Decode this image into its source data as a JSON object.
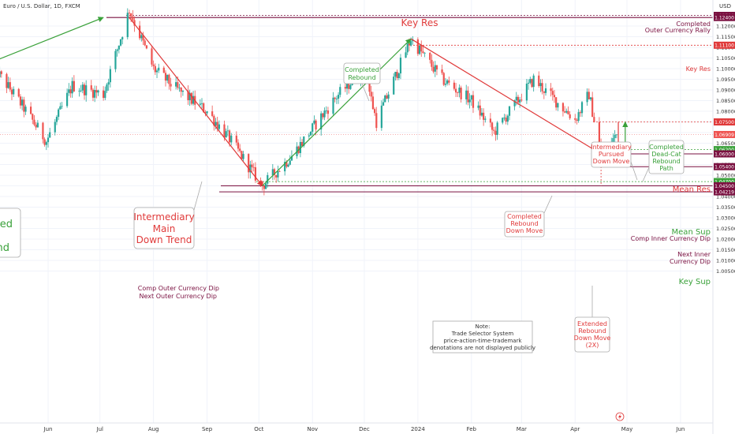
{
  "chart_title": "Euro / U.S. Dollar, 1D, FXCM",
  "currency_label": "USD",
  "colors": {
    "up": "#26a69a",
    "down": "#ef5350",
    "red": "#e03a3a",
    "green": "#3aa13a",
    "maroon": "#7a1040",
    "grid": "#f0f3fa"
  },
  "chart_data": {
    "type": "candlestick",
    "x_ticks": [
      "Jun",
      "Jul",
      "Aug",
      "Sep",
      "Oct",
      "Nov",
      "Dec",
      "2024",
      "Feb",
      "Mar",
      "Apr",
      "May",
      "Jun"
    ],
    "ylim": [
      1.0,
      1.13
    ],
    "y_ticks": [
      1.005,
      1.01,
      1.015,
      1.02,
      1.025,
      1.03,
      1.035,
      1.04,
      1.045,
      1.05,
      1.055,
      1.06,
      1.065,
      1.07,
      1.075,
      1.08,
      1.085,
      1.09,
      1.095,
      1.1,
      1.105,
      1.11,
      1.115,
      1.12
    ],
    "price_tags": [
      {
        "value": 1.125,
        "label": "1.12500",
        "bg": "#7a1040"
      },
      {
        "value": 1.124,
        "label": "1.12400",
        "bg": "#7a1040"
      },
      {
        "value": 1.111,
        "label": "1.11100",
        "bg": "#e03a3a"
      },
      {
        "value": 1.075,
        "label": "1.07500",
        "bg": "#e03a3a"
      },
      {
        "value": 1.06909,
        "label": "1.06909",
        "bg": "#ef5350"
      },
      {
        "value": 1.062,
        "label": "1.06200",
        "bg": "#3aa13a"
      },
      {
        "value": 1.06,
        "label": "1.06000",
        "bg": "#7a1040"
      },
      {
        "value": 1.054,
        "label": "1.05400",
        "bg": "#7a1040"
      },
      {
        "value": 1.047,
        "label": "1.04700",
        "bg": "#3aa13a"
      },
      {
        "value": 1.045,
        "label": "1.04500",
        "bg": "#7a1040"
      },
      {
        "value": 1.04219,
        "label": "1.04219",
        "bg": "#7a1040"
      }
    ],
    "levels": [
      {
        "name": "Key Res",
        "value": 1.124
      },
      {
        "name": "Key Res",
        "value": 1.111
      },
      {
        "name": "Mean Res",
        "value": 1.075
      },
      {
        "name": "Mean Sup",
        "value": 1.062
      },
      {
        "name": "Comp Inner Currency Dip",
        "value": 1.06
      },
      {
        "name": "Next Inner Currency Dip",
        "value": 1.054
      },
      {
        "name": "Key Sup",
        "value": 1.047
      },
      {
        "name": "Comp Outer Currency Dip",
        "value": 1.045
      },
      {
        "name": "Next Outer Currency Dip",
        "value": 1.04219
      },
      {
        "name": "Completed Outer Currency Rally",
        "value": 1.125
      }
    ],
    "waypoints": [
      [
        "2023-05-01",
        1.1
      ],
      [
        "2023-05-15",
        1.085
      ],
      [
        "2023-05-31",
        1.066
      ],
      [
        "2023-06-15",
        1.092
      ],
      [
        "2023-07-03",
        1.088
      ],
      [
        "2023-07-18",
        1.1276
      ],
      [
        "2023-08-01",
        1.1
      ],
      [
        "2023-08-15",
        1.09
      ],
      [
        "2023-09-01",
        1.08
      ],
      [
        "2023-09-15",
        1.066
      ],
      [
        "2023-10-03",
        1.045
      ],
      [
        "2023-10-20",
        1.059
      ],
      [
        "2023-11-15",
        1.087
      ],
      [
        "2023-12-01",
        1.1
      ],
      [
        "2023-12-08",
        1.075
      ],
      [
        "2023-12-28",
        1.114
      ],
      [
        "2024-01-15",
        1.095
      ],
      [
        "2024-02-01",
        1.085
      ],
      [
        "2024-02-14",
        1.07
      ],
      [
        "2024-03-08",
        1.095
      ],
      [
        "2024-04-01",
        1.076
      ],
      [
        "2024-04-09",
        1.088
      ],
      [
        "2024-04-16",
        1.06
      ],
      [
        "2024-04-26",
        1.07
      ]
    ],
    "last_price": 1.06909
  },
  "annotations": {
    "key_res": "Key Res",
    "completed_outer_1": "Completed",
    "completed_outer_2": "Outer Currency Rally",
    "key_res_small": "Key Res",
    "mean_res": "Mean Res",
    "mean_sup": "Mean Sup",
    "comp_inner": "Comp Inner Currency Dip",
    "next_inner_1": "Next Inner",
    "next_inner_2": "Currency Dip",
    "key_sup": "Key Sup",
    "comp_outer": "Comp Outer Currency Dip",
    "next_outer": "Next Outer Currency Dip",
    "completed_rebound_1": "Completed",
    "completed_rebound_2": "Rebound",
    "imdt_1": "Intermediary",
    "imdt_2": "Main",
    "imdt_3": "Down Trend",
    "crdm_1": "Completed",
    "crdm_2": "Rebound",
    "crdm_3": "Down Move",
    "ipdm_1": "Intermediary",
    "ipdm_2": "Pursued",
    "ipdm_3": "Down Move",
    "cdcr_1": "Completed",
    "cdcr_2": "Dead-Cat",
    "cdcr_3": "Rebound",
    "cdcr_4": "Path",
    "erdm_1": "Extended",
    "erdm_2": "Rebound",
    "erdm_3": "Down Move",
    "erdm_4": "(2X)",
    "note_1": "Note:",
    "note_2": "Trade Selector System",
    "note_3": "price-action-time-trademark",
    "note_4": "denotations are not displayed publicly",
    "left_cut_1": "eted",
    "left_cut_2": "nd"
  }
}
